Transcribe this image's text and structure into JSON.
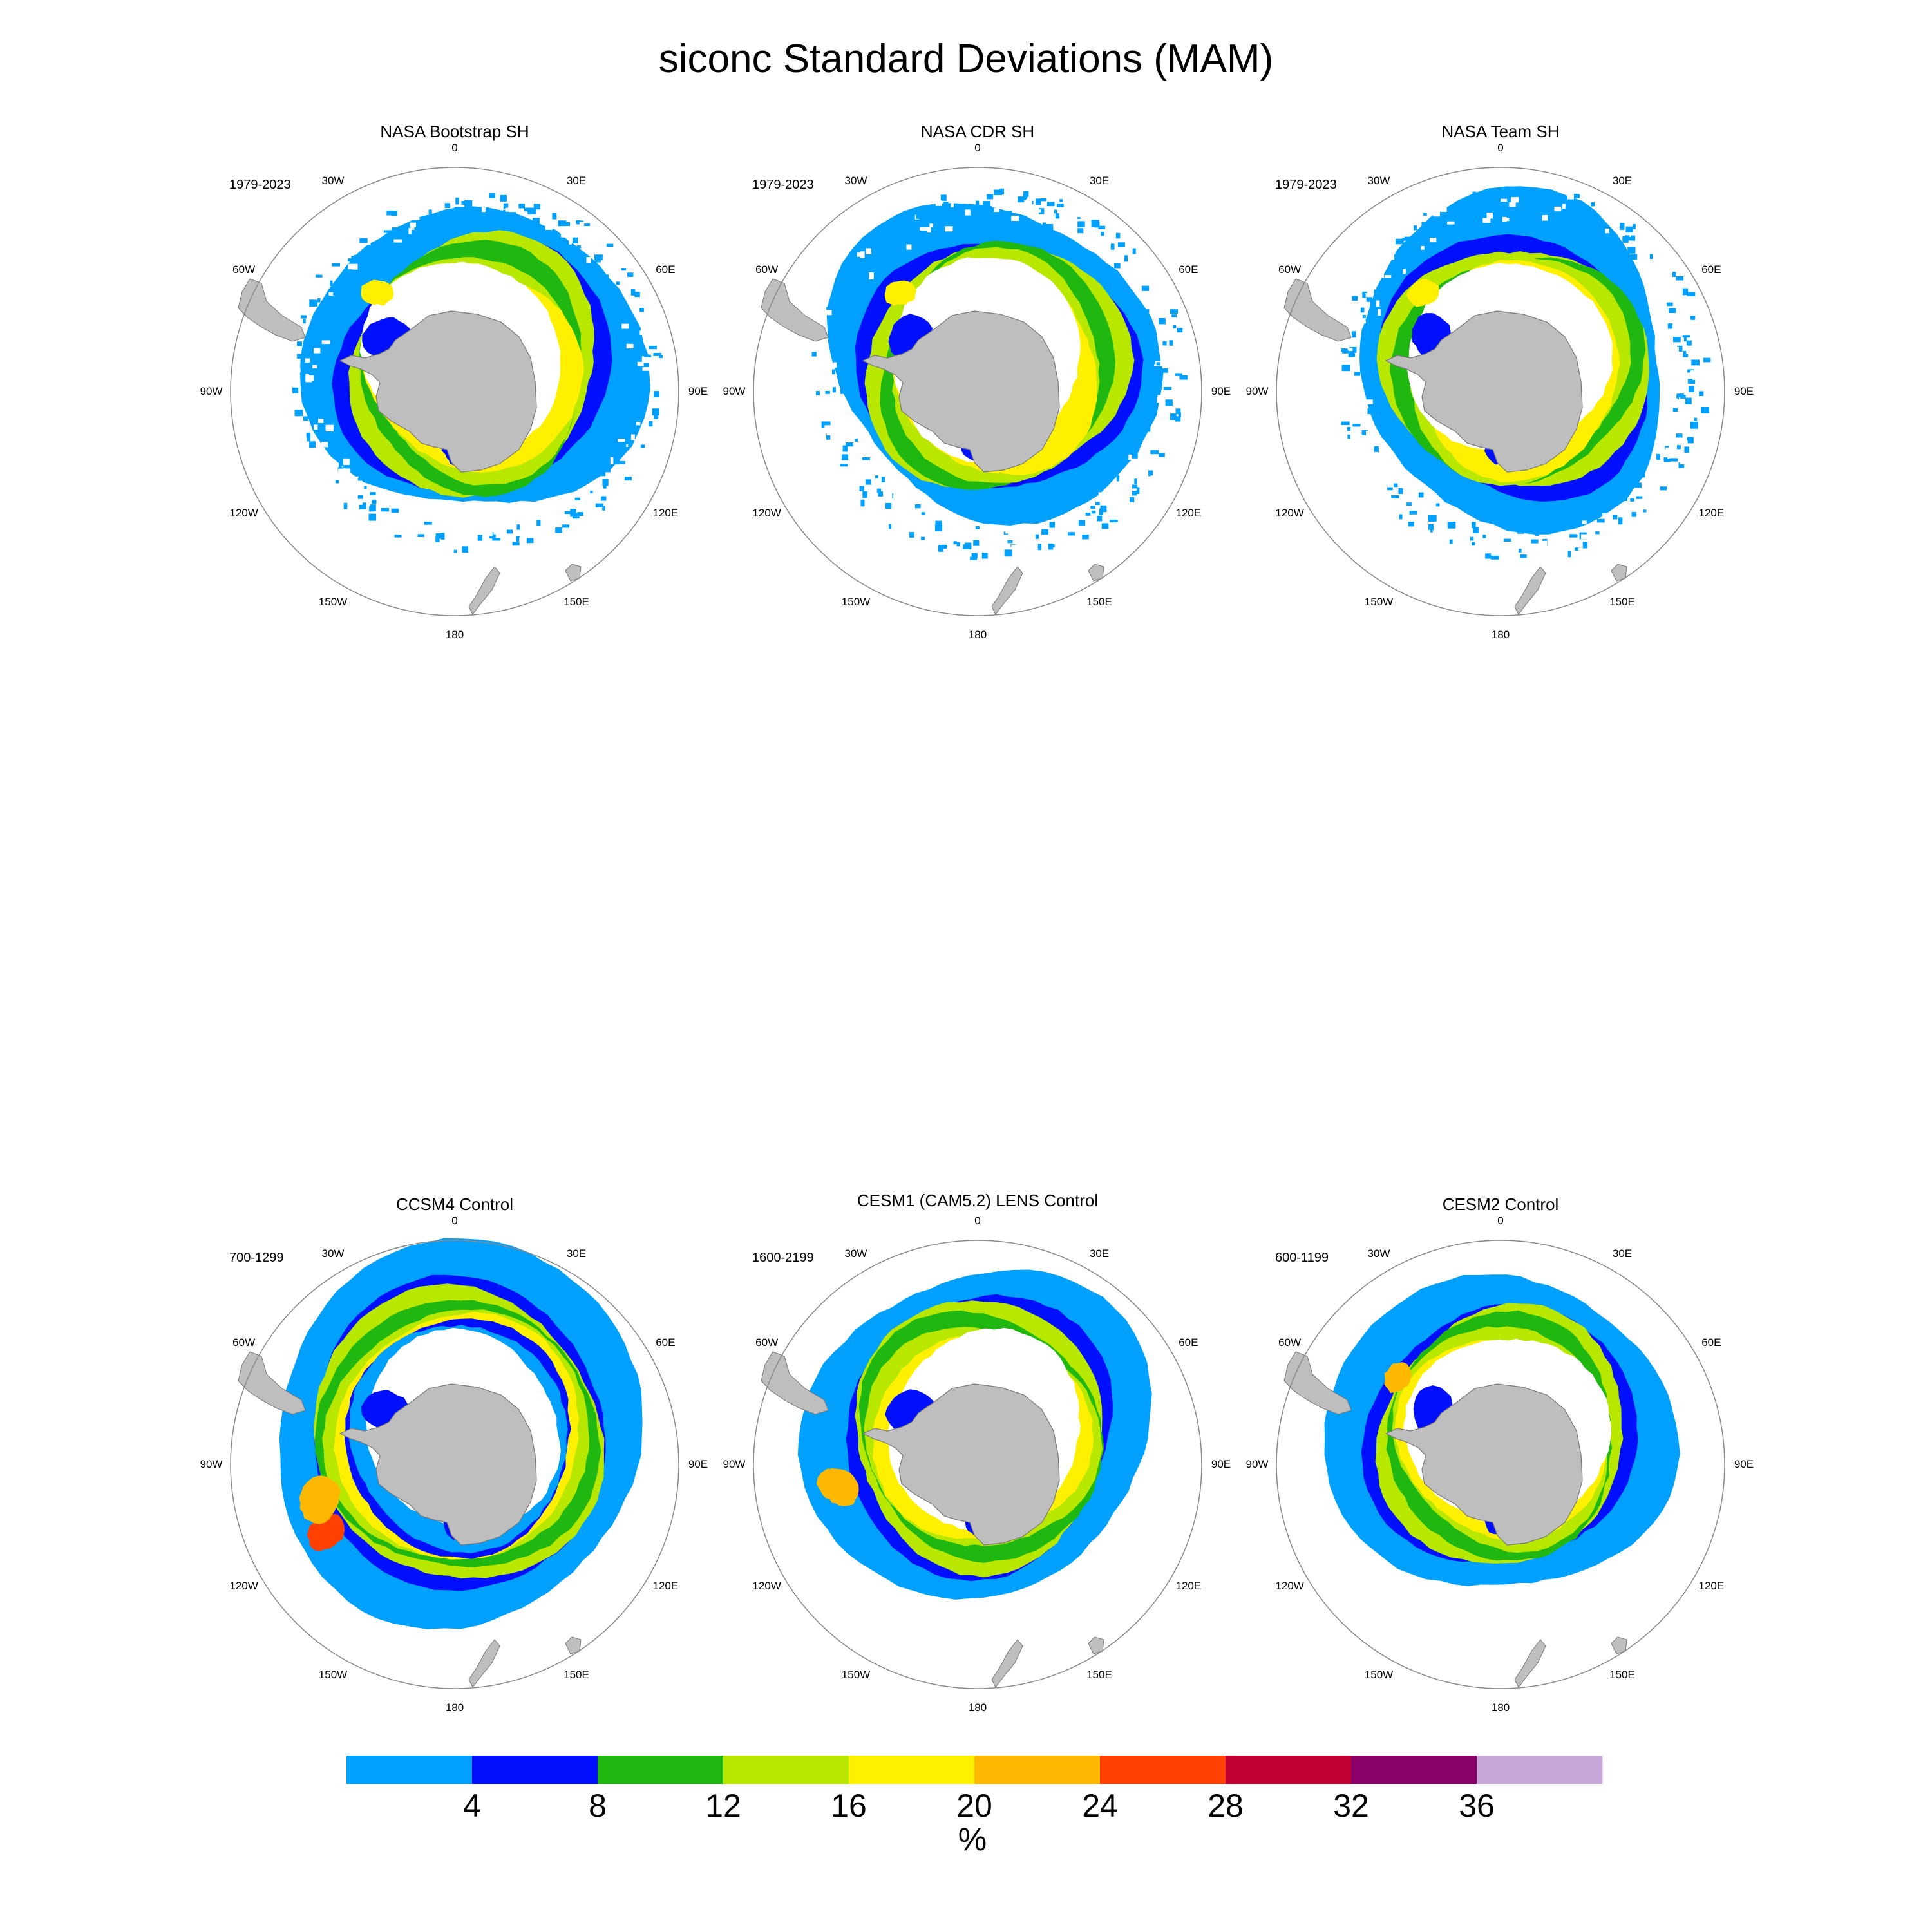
{
  "title": "siconc Standard Deviations (MAM)",
  "longitude_labels": [
    "0",
    "30E",
    "60E",
    "90E",
    "120E",
    "150E",
    "180",
    "150W",
    "120W",
    "90W",
    "60W",
    "30W"
  ],
  "panels": [
    {
      "title": "NASA Bootstrap SH",
      "period": "1979-2023",
      "style": "obs-a"
    },
    {
      "title": "NASA CDR SH",
      "period": "1979-2023",
      "style": "obs-b"
    },
    {
      "title": "NASA Team SH",
      "period": "1979-2023",
      "style": "obs-c"
    },
    {
      "title": "CCSM4 Control",
      "period": "700-1299",
      "style": "ccsm4"
    },
    {
      "title": "CESM1 (CAM5.2) LENS Control",
      "period": "1600-2199",
      "style": "cesm1"
    },
    {
      "title": "CESM2 Control",
      "period": "600-1199",
      "style": "cesm2"
    }
  ],
  "colorbar": {
    "colors": [
      "#00a0ff",
      "#0010ff",
      "#20b810",
      "#b8e800",
      "#fff000",
      "#ffb800",
      "#ff4000",
      "#c00030",
      "#880068",
      "#c8a8d8"
    ],
    "tick_labels": [
      "4",
      "8",
      "12",
      "16",
      "20",
      "24",
      "28",
      "32",
      "36"
    ],
    "unit": "%"
  },
  "colors": {
    "land": "#bebebe",
    "coast": "#777777",
    "circle": "#888888"
  }
}
